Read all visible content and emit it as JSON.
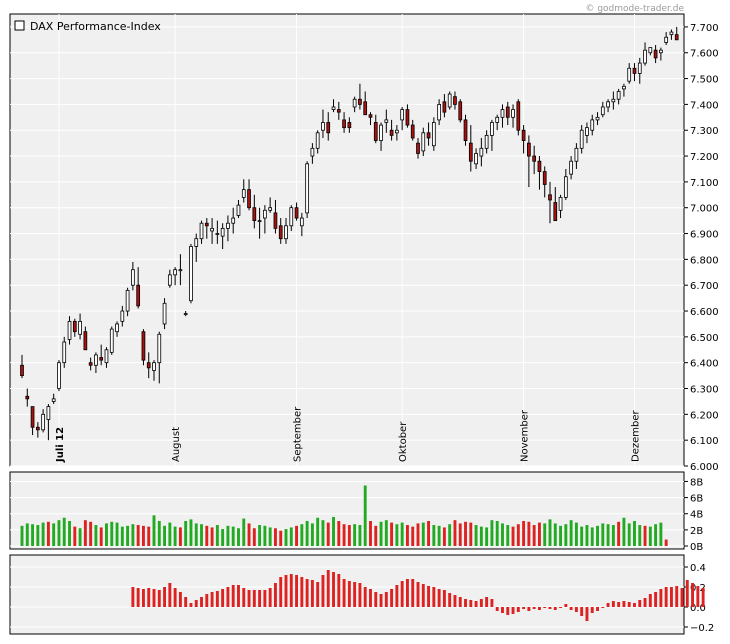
{
  "watermark": "© godmode-trader.de",
  "chart_data": [
    {
      "type": "candlestick",
      "title": "DAX Performance-Index",
      "legend": "top-left",
      "ylim": [
        6000,
        7750
      ],
      "y_ticks": [
        "6.000",
        "6.100",
        "6.200",
        "6.300",
        "6.400",
        "6.500",
        "6.600",
        "6.700",
        "6.800",
        "6.900",
        "7.000",
        "7.100",
        "7.200",
        "7.300",
        "7.400",
        "7.500",
        "7.600",
        "7.700"
      ],
      "x_month_labels": [
        {
          "label": "Juli 12",
          "index": 7
        },
        {
          "label": "August",
          "index": 29
        },
        {
          "label": "September",
          "index": 52
        },
        {
          "label": "Oktober",
          "index": 72
        },
        {
          "label": "November",
          "index": 95
        },
        {
          "label": "Dezember",
          "index": 116
        }
      ],
      "grid": true,
      "candles": [
        [
          6390,
          6430,
          6340,
          6350
        ],
        [
          6270,
          6300,
          6230,
          6260
        ],
        [
          6230,
          6230,
          6120,
          6150
        ],
        [
          6150,
          6170,
          6110,
          6140
        ],
        [
          6140,
          6220,
          6130,
          6200
        ],
        [
          6180,
          6240,
          6100,
          6230
        ],
        [
          6250,
          6280,
          6240,
          6260
        ],
        [
          6300,
          6410,
          6290,
          6400
        ],
        [
          6400,
          6500,
          6380,
          6480
        ],
        [
          6490,
          6580,
          6470,
          6560
        ],
        [
          6560,
          6570,
          6500,
          6520
        ],
        [
          6510,
          6590,
          6490,
          6560
        ],
        [
          6520,
          6540,
          6450,
          6450
        ],
        [
          6400,
          6420,
          6370,
          6390
        ],
        [
          6390,
          6440,
          6360,
          6430
        ],
        [
          6420,
          6470,
          6390,
          6410
        ],
        [
          6400,
          6460,
          6380,
          6450
        ],
        [
          6440,
          6540,
          6430,
          6530
        ],
        [
          6520,
          6560,
          6500,
          6550
        ],
        [
          6560,
          6620,
          6540,
          6600
        ],
        [
          6600,
          6690,
          6580,
          6680
        ],
        [
          6700,
          6790,
          6680,
          6760
        ],
        [
          6700,
          6770,
          6610,
          6620
        ],
        [
          6520,
          6530,
          6390,
          6410
        ],
        [
          6400,
          6440,
          6340,
          6380
        ],
        [
          6370,
          6410,
          6330,
          6400
        ],
        [
          6400,
          6520,
          6320,
          6510
        ],
        [
          6550,
          6650,
          6530,
          6630
        ],
        [
          6700,
          6760,
          6690,
          6740
        ],
        [
          6740,
          6770,
          6700,
          6760
        ],
        [
          6760,
          6820,
          6700,
          6760
        ],
        [
          6590,
          6600,
          6580,
          6590
        ],
        [
          6640,
          6860,
          6630,
          6850
        ],
        [
          6850,
          6900,
          6790,
          6880
        ],
        [
          6880,
          6950,
          6860,
          6940
        ],
        [
          6940,
          6960,
          6880,
          6930
        ],
        [
          6910,
          6960,
          6860,
          6920
        ],
        [
          6900,
          6950,
          6860,
          6900
        ],
        [
          6890,
          6940,
          6840,
          6920
        ],
        [
          6920,
          6970,
          6870,
          6940
        ],
        [
          6940,
          7000,
          6900,
          6960
        ],
        [
          6970,
          7030,
          6960,
          7010
        ],
        [
          7040,
          7110,
          7020,
          7070
        ],
        [
          7070,
          7110,
          6990,
          7000
        ],
        [
          7000,
          7050,
          6920,
          6950
        ],
        [
          6950,
          7000,
          6880,
          6950
        ],
        [
          6960,
          7010,
          6900,
          6990
        ],
        [
          6990,
          7040,
          6980,
          7000
        ],
        [
          6980,
          7030,
          6900,
          6920
        ],
        [
          6930,
          6960,
          6860,
          6880
        ],
        [
          6880,
          6960,
          6860,
          6930
        ],
        [
          6930,
          7010,
          6910,
          7000
        ],
        [
          7000,
          7020,
          6950,
          6960
        ],
        [
          6930,
          6980,
          6890,
          6960
        ],
        [
          6980,
          7180,
          6960,
          7170
        ],
        [
          7200,
          7250,
          7170,
          7230
        ],
        [
          7230,
          7300,
          7210,
          7290
        ],
        [
          7300,
          7380,
          7270,
          7330
        ],
        [
          7330,
          7370,
          7260,
          7290
        ],
        [
          7380,
          7420,
          7370,
          7390
        ],
        [
          7380,
          7410,
          7340,
          7370
        ],
        [
          7340,
          7370,
          7290,
          7310
        ],
        [
          7330,
          7350,
          7290,
          7310
        ],
        [
          7390,
          7430,
          7370,
          7420
        ],
        [
          7420,
          7480,
          7380,
          7400
        ],
        [
          7410,
          7450,
          7360,
          7360
        ],
        [
          7360,
          7370,
          7320,
          7350
        ],
        [
          7330,
          7360,
          7250,
          7260
        ],
        [
          7260,
          7330,
          7220,
          7320
        ],
        [
          7330,
          7380,
          7290,
          7340
        ],
        [
          7300,
          7340,
          7260,
          7280
        ],
        [
          7290,
          7320,
          7260,
          7300
        ],
        [
          7340,
          7390,
          7300,
          7380
        ],
        [
          7380,
          7400,
          7310,
          7320
        ],
        [
          7320,
          7340,
          7260,
          7270
        ],
        [
          7250,
          7270,
          7190,
          7210
        ],
        [
          7220,
          7310,
          7200,
          7290
        ],
        [
          7290,
          7330,
          7240,
          7270
        ],
        [
          7240,
          7350,
          7220,
          7330
        ],
        [
          7340,
          7420,
          7320,
          7400
        ],
        [
          7410,
          7440,
          7350,
          7370
        ],
        [
          7390,
          7450,
          7380,
          7440
        ],
        [
          7430,
          7450,
          7380,
          7400
        ],
        [
          7410,
          7420,
          7330,
          7340
        ],
        [
          7340,
          7360,
          7240,
          7260
        ],
        [
          7250,
          7320,
          7140,
          7180
        ],
        [
          7170,
          7230,
          7150,
          7210
        ],
        [
          7200,
          7270,
          7160,
          7230
        ],
        [
          7230,
          7300,
          7210,
          7280
        ],
        [
          7280,
          7340,
          7220,
          7330
        ],
        [
          7330,
          7360,
          7300,
          7350
        ],
        [
          7350,
          7400,
          7310,
          7380
        ],
        [
          7390,
          7410,
          7320,
          7350
        ],
        [
          7350,
          7400,
          7310,
          7380
        ],
        [
          7410,
          7420,
          7280,
          7300
        ],
        [
          7300,
          7320,
          7210,
          7260
        ],
        [
          7250,
          7280,
          7080,
          7200
        ],
        [
          7200,
          7240,
          7130,
          7180
        ],
        [
          7180,
          7200,
          7070,
          7140
        ],
        [
          7140,
          7160,
          7040,
          7090
        ],
        [
          7050,
          7100,
          6940,
          7030
        ],
        [
          7020,
          7080,
          6950,
          6950
        ],
        [
          6990,
          7050,
          6960,
          7040
        ],
        [
          7040,
          7150,
          7030,
          7120
        ],
        [
          7130,
          7200,
          7110,
          7180
        ],
        [
          7180,
          7250,
          7150,
          7230
        ],
        [
          7230,
          7320,
          7210,
          7300
        ],
        [
          7280,
          7330,
          7250,
          7310
        ],
        [
          7300,
          7360,
          7280,
          7340
        ],
        [
          7340,
          7370,
          7320,
          7350
        ],
        [
          7360,
          7410,
          7350,
          7390
        ],
        [
          7390,
          7420,
          7370,
          7410
        ],
        [
          7410,
          7450,
          7380,
          7420
        ],
        [
          7420,
          7460,
          7400,
          7450
        ],
        [
          7460,
          7480,
          7430,
          7470
        ],
        [
          7490,
          7560,
          7480,
          7540
        ],
        [
          7540,
          7560,
          7490,
          7520
        ],
        [
          7520,
          7580,
          7480,
          7560
        ],
        [
          7560,
          7640,
          7550,
          7610
        ],
        [
          7600,
          7620,
          7590,
          7620
        ],
        [
          7610,
          7630,
          7560,
          7580
        ],
        [
          7600,
          7620,
          7570,
          7610
        ],
        [
          7640,
          7680,
          7630,
          7660
        ],
        [
          7670,
          7690,
          7650,
          7680
        ],
        [
          7670,
          7700,
          7650,
          7650
        ]
      ]
    },
    {
      "type": "bar",
      "title": "",
      "ylim": [
        0,
        8.8
      ],
      "y_ticks": [
        "8B",
        "6B",
        "4B",
        "2B",
        "0B"
      ],
      "tick_values": [
        8,
        6,
        4,
        2,
        0
      ],
      "up_color": "#22aa22",
      "down_color": "#dd2222",
      "values": [
        2.5,
        2.8,
        2.7,
        2.6,
        2.9,
        3,
        2.8,
        3.2,
        3.5,
        3.1,
        2.4,
        2.2,
        3.2,
        3,
        2.6,
        2.3,
        2.8,
        3,
        2.9,
        2.4,
        2.5,
        2.7,
        2.6,
        2.5,
        2.4,
        3.8,
        3.1,
        2.5,
        2.9,
        2.4,
        2.3,
        3.1,
        3.3,
        2.8,
        2.7,
        2.5,
        2.3,
        2.6,
        2.1,
        2.5,
        2.4,
        2.2,
        3.4,
        2.8,
        2.2,
        2.6,
        2.5,
        2.3,
        2.2,
        1.9,
        2.1,
        2.3,
        2.5,
        2.7,
        3.1,
        2.8,
        3.5,
        3.2,
        2.9,
        3.6,
        3.1,
        2.7,
        2.6,
        2.7,
        2.6,
        7.5,
        3.1,
        2.5,
        3,
        3.2,
        2.9,
        2.7,
        2.9,
        2.6,
        2.4,
        2.8,
        2.9,
        3.1,
        2.6,
        2.5,
        2.3,
        2.7,
        3.2,
        2.8,
        3,
        2.9,
        2.6,
        2.4,
        2.3,
        3.2,
        3.1,
        2.8,
        2.6,
        2.4,
        2.7,
        3.1,
        3,
        2.6,
        2.9,
        2.8,
        3.3,
        2.8,
        2.5,
        2.7,
        3.2,
        2.9,
        2.4,
        2.6,
        2.3,
        2.5,
        2.8,
        2.7,
        2.6,
        3,
        3.5,
        2.8,
        3.1,
        2.6,
        2.5,
        2.4,
        2.7,
        2.9,
        0.8
      ],
      "colors": [
        "g",
        "g",
        "g",
        "g",
        "g",
        "r",
        "g",
        "g",
        "g",
        "g",
        "r",
        "g",
        "r",
        "r",
        "g",
        "r",
        "g",
        "g",
        "g",
        "g",
        "g",
        "g",
        "r",
        "r",
        "r",
        "g",
        "g",
        "g",
        "g",
        "g",
        "r",
        "g",
        "g",
        "g",
        "g",
        "r",
        "r",
        "g",
        "g",
        "g",
        "g",
        "g",
        "g",
        "r",
        "r",
        "g",
        "g",
        "g",
        "r",
        "r",
        "g",
        "g",
        "r",
        "g",
        "g",
        "g",
        "g",
        "g",
        "r",
        "g",
        "r",
        "r",
        "r",
        "g",
        "g",
        "g",
        "r",
        "r",
        "g",
        "g",
        "r",
        "g",
        "g",
        "r",
        "r",
        "r",
        "g",
        "r",
        "g",
        "g",
        "r",
        "g",
        "r",
        "r",
        "r",
        "r",
        "g",
        "g",
        "g",
        "g",
        "g",
        "g",
        "g",
        "r",
        "r",
        "r",
        "r",
        "r",
        "r",
        "g",
        "g",
        "g",
        "g",
        "g",
        "g",
        "g",
        "g",
        "g",
        "g",
        "g",
        "g",
        "g",
        "g",
        "r",
        "g",
        "g",
        "g",
        "g",
        "r",
        "g",
        "g",
        "g",
        "r",
        "g"
      ]
    },
    {
      "type": "bar",
      "title": "",
      "ylim": [
        -0.25,
        0.5
      ],
      "y_ticks": [
        "0.4",
        "0.2",
        "0.0",
        "−0.2"
      ],
      "tick_values": [
        0.4,
        0.2,
        0.0,
        -0.2
      ],
      "bar_color": "#dd2222",
      "start_index": 21,
      "values": [
        0.2,
        0.19,
        0.18,
        0.19,
        0.18,
        0.17,
        0.2,
        0.24,
        0.19,
        0.15,
        0.1,
        0.04,
        0.07,
        0.1,
        0.13,
        0.15,
        0.16,
        0.18,
        0.2,
        0.22,
        0.22,
        0.19,
        0.17,
        0.17,
        0.17,
        0.17,
        0.19,
        0.24,
        0.3,
        0.32,
        0.33,
        0.32,
        0.3,
        0.28,
        0.27,
        0.25,
        0.32,
        0.37,
        0.35,
        0.33,
        0.28,
        0.26,
        0.25,
        0.24,
        0.2,
        0.18,
        0.15,
        0.13,
        0.15,
        0.18,
        0.22,
        0.26,
        0.28,
        0.28,
        0.25,
        0.23,
        0.21,
        0.2,
        0.18,
        0.17,
        0.14,
        0.12,
        0.1,
        0.08,
        0.07,
        0.06,
        0.08,
        0.1,
        0.08,
        -0.04,
        -0.06,
        -0.08,
        -0.07,
        -0.05,
        -0.02,
        -0.04,
        -0.02,
        -0.03,
        -0.01,
        -0.02,
        -0.03,
        -0.01,
        0.03,
        -0.03,
        -0.05,
        -0.09,
        -0.14,
        -0.06,
        -0.04,
        0,
        0.04,
        0.06,
        0.05,
        0.06,
        0.05,
        0.04,
        0.07,
        0.09,
        0.13,
        0.15,
        0.18,
        0.2,
        0.2,
        0.21,
        0.19,
        0.27,
        0.24,
        0.21,
        0.19
      ]
    }
  ]
}
